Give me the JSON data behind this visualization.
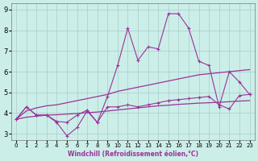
{
  "xlabel": "Windchill (Refroidissement éolien,°C)",
  "bg_color": "#cceee8",
  "grid_color": "#aacccc",
  "line_color": "#993399",
  "xlim": [
    -0.5,
    23.5
  ],
  "ylim": [
    2.7,
    9.3
  ],
  "xticks": [
    0,
    1,
    2,
    3,
    4,
    5,
    6,
    7,
    8,
    9,
    10,
    11,
    12,
    13,
    14,
    15,
    16,
    17,
    18,
    19,
    20,
    21,
    22,
    23
  ],
  "yticks": [
    3,
    4,
    5,
    6,
    7,
    8,
    9
  ],
  "spiky_x": [
    0,
    1,
    2,
    3,
    4,
    5,
    6,
    7,
    8,
    9,
    10,
    11,
    12,
    13,
    14,
    15,
    16,
    17,
    18,
    19,
    20,
    21,
    22,
    23
  ],
  "spiky_y": [
    3.7,
    4.3,
    3.9,
    3.9,
    3.55,
    2.9,
    3.3,
    4.1,
    3.55,
    4.8,
    6.3,
    8.1,
    6.55,
    7.2,
    7.1,
    8.8,
    8.8,
    8.1,
    6.5,
    6.3,
    4.3,
    6.0,
    5.5,
    4.9
  ],
  "lower_spiky_x": [
    0,
    1,
    2,
    3,
    4,
    5,
    6,
    7,
    8,
    9,
    10,
    11,
    12,
    13,
    14,
    15,
    16,
    17,
    18,
    19,
    20,
    21,
    22,
    23
  ],
  "lower_spiky_y": [
    3.7,
    4.3,
    3.9,
    3.9,
    3.6,
    3.55,
    3.9,
    4.15,
    3.55,
    4.3,
    4.3,
    4.4,
    4.3,
    4.4,
    4.5,
    4.6,
    4.65,
    4.7,
    4.75,
    4.8,
    4.4,
    4.2,
    4.85,
    4.9
  ],
  "upper_smooth_x": [
    0,
    1,
    2,
    3,
    4,
    5,
    6,
    7,
    8,
    9,
    10,
    11,
    12,
    13,
    14,
    15,
    16,
    17,
    18,
    19,
    20,
    21,
    22,
    23
  ],
  "upper_smooth_y": [
    3.7,
    4.1,
    4.25,
    4.35,
    4.4,
    4.5,
    4.6,
    4.7,
    4.8,
    4.9,
    5.05,
    5.15,
    5.25,
    5.35,
    5.45,
    5.55,
    5.65,
    5.75,
    5.85,
    5.9,
    5.95,
    6.0,
    6.05,
    6.1
  ],
  "lower_smooth_x": [
    0,
    1,
    2,
    3,
    4,
    5,
    6,
    7,
    8,
    9,
    10,
    11,
    12,
    13,
    14,
    15,
    16,
    17,
    18,
    19,
    20,
    21,
    22,
    23
  ],
  "lower_smooth_y": [
    3.7,
    3.8,
    3.85,
    3.9,
    3.92,
    3.95,
    3.98,
    4.02,
    4.05,
    4.1,
    4.15,
    4.2,
    4.25,
    4.3,
    4.35,
    4.38,
    4.42,
    4.45,
    4.48,
    4.5,
    4.52,
    4.55,
    4.58,
    4.6
  ]
}
